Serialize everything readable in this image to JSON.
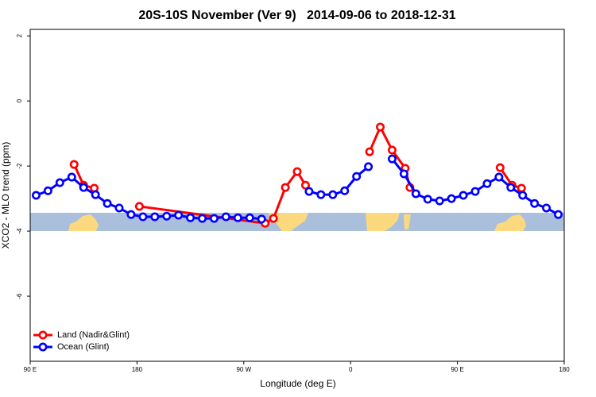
{
  "chart_data": {
    "type": "line",
    "title": "20S-10S November (Ver 9)   2014-09-06 to 2018-12-31",
    "x_label": "Longitude (deg E)",
    "y_label": "XCO2 - MLO trend (ppm)",
    "xlim": [
      90,
      540
    ],
    "xticks": [
      {
        "value": 90,
        "label": "90 E"
      },
      {
        "value": 180,
        "label": "180"
      },
      {
        "value": 270,
        "label": "90 W"
      },
      {
        "value": 360,
        "label": "0"
      },
      {
        "value": 450,
        "label": "90 E"
      },
      {
        "value": 540,
        "label": "180"
      }
    ],
    "ylim": [
      -8,
      2.2
    ],
    "yticks": [
      2,
      0,
      -2,
      -4,
      -6
    ],
    "legend": "bottom-left",
    "series": [
      {
        "name": "Land (Nadir&Glint)",
        "color": "#ff0000",
        "x": [
          127,
          135,
          144,
          163,
          182,
          288,
          295,
          305,
          315,
          322,
          350,
          376,
          385,
          395,
          406,
          410,
          450,
          486,
          496,
          504
        ],
        "values": [
          -1.95,
          -2.59,
          -2.68,
          null,
          -3.24,
          -3.76,
          -3.61,
          -2.66,
          -2.17,
          -2.59,
          null,
          -1.56,
          -0.8,
          -1.51,
          -2.07,
          -2.66,
          null,
          -2.05,
          -2.59,
          -2.68
        ]
      },
      {
        "name": "Ocean (Glint)",
        "color": "#0000ff",
        "x": [
          95,
          105,
          115,
          125,
          135,
          145,
          155,
          165,
          175,
          185,
          195,
          205,
          215,
          225,
          235,
          245,
          255,
          265,
          275,
          285,
          305,
          325,
          335,
          345,
          355,
          365,
          375,
          385,
          395,
          405,
          415,
          425,
          435,
          445,
          455,
          465,
          475,
          485,
          495,
          505,
          515,
          525,
          535
        ],
        "values": [
          -2.9,
          -2.76,
          -2.51,
          -2.34,
          -2.66,
          -2.88,
          -3.15,
          -3.29,
          -3.49,
          -3.56,
          -3.56,
          -3.54,
          -3.51,
          -3.59,
          -3.61,
          -3.61,
          -3.56,
          -3.59,
          -3.59,
          -3.63,
          null,
          -2.78,
          -2.88,
          -2.88,
          -2.76,
          -2.32,
          -2.02,
          null,
          -1.78,
          -2.24,
          -2.85,
          -3.02,
          -3.07,
          -3.0,
          -2.9,
          -2.78,
          -2.54,
          -2.34,
          -2.66,
          -2.9,
          -3.15,
          -3.29,
          -3.49
        ]
      }
    ]
  }
}
